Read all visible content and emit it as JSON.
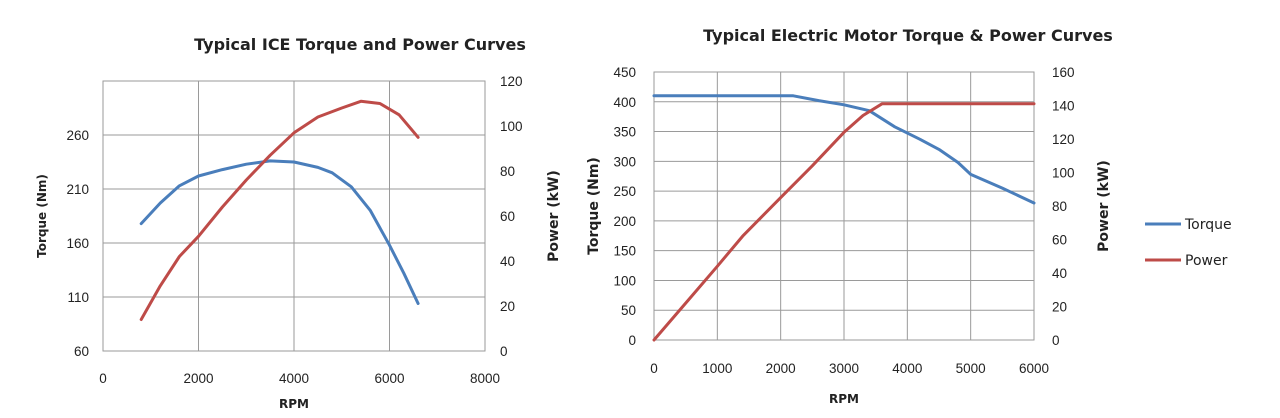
{
  "chart_data": [
    {
      "type": "line",
      "title": "Typical ICE Torque and Power Curves",
      "xlabel": "RPM",
      "ylabel": "Torque (Nm)",
      "y2label": "Power (kW)",
      "xlim": [
        0,
        8000
      ],
      "ylim": [
        60,
        310
      ],
      "y2lim": [
        0,
        120
      ],
      "xticks": [
        0,
        2000,
        4000,
        6000,
        8000
      ],
      "yticks": [
        60,
        110,
        160,
        210,
        260
      ],
      "y2ticks": [
        0,
        20,
        40,
        60,
        80,
        100,
        120
      ],
      "grid": true,
      "series": [
        {
          "name": "Torque",
          "axis": "left",
          "color": "#4a7ebb",
          "x": [
            800,
            1200,
            1600,
            2000,
            2500,
            3000,
            3500,
            4000,
            4500,
            4800,
            5200,
            5600,
            6000,
            6300,
            6600
          ],
          "y": [
            178,
            197,
            213,
            222,
            228,
            233,
            236,
            235,
            230,
            225,
            212,
            190,
            158,
            132,
            104
          ]
        },
        {
          "name": "Power",
          "axis": "right",
          "color": "#be4b48",
          "x": [
            800,
            1200,
            1600,
            2000,
            2500,
            3000,
            3500,
            4000,
            4500,
            5000,
            5400,
            5800,
            6200,
            6600
          ],
          "y": [
            14,
            29,
            42,
            51,
            64,
            76,
            87,
            97,
            104,
            108,
            111,
            110,
            105,
            95
          ]
        }
      ]
    },
    {
      "type": "line",
      "title": "Typical Electric Motor Torque & Power Curves",
      "xlabel": "RPM",
      "ylabel": "Torque (Nm)",
      "y2label": "Power (kW)",
      "xlim": [
        0,
        6000
      ],
      "ylim": [
        0,
        450
      ],
      "y2lim": [
        0,
        160
      ],
      "xticks": [
        0,
        1000,
        2000,
        3000,
        4000,
        5000,
        6000
      ],
      "yticks": [
        0,
        50,
        100,
        150,
        200,
        250,
        300,
        350,
        400,
        450
      ],
      "y2ticks": [
        0,
        20,
        40,
        60,
        80,
        100,
        120,
        140,
        160
      ],
      "grid": true,
      "legend": "right",
      "series": [
        {
          "name": "Torque",
          "axis": "left",
          "color": "#4a7ebb",
          "x": [
            0,
            1000,
            2000,
            2200,
            2600,
            3000,
            3400,
            3800,
            4200,
            4500,
            4800,
            5000,
            5500,
            6000
          ],
          "y": [
            410,
            410,
            410,
            410,
            402,
            395,
            385,
            358,
            337,
            320,
            298,
            278,
            255,
            230
          ]
        },
        {
          "name": "Power",
          "axis": "right",
          "color": "#be4b48",
          "x": [
            0,
            500,
            1000,
            1400,
            2000,
            2500,
            3000,
            3300,
            3600,
            4000,
            5000,
            6000
          ],
          "y": [
            0,
            22,
            44,
            62,
            85,
            104,
            124,
            134,
            141,
            141,
            141,
            141
          ]
        }
      ]
    }
  ]
}
